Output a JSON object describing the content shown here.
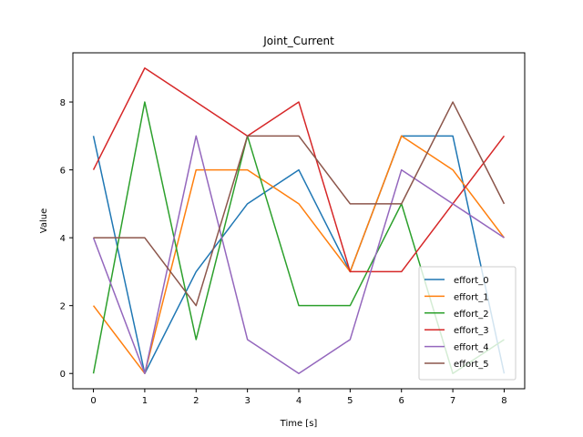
{
  "chart_data": {
    "type": "line",
    "title": "Joint_Current",
    "xlabel": "Time [s]",
    "ylabel": "Value",
    "x": [
      0,
      1,
      2,
      3,
      4,
      5,
      6,
      7,
      8
    ],
    "xlim": [
      -0.4,
      8.4
    ],
    "ylim": [
      -0.45,
      9.45
    ],
    "xticks": [
      0,
      1,
      2,
      3,
      4,
      5,
      6,
      7,
      8
    ],
    "yticks": [
      0,
      2,
      4,
      6,
      8
    ],
    "grid": false,
    "legend": "lower-right",
    "series": [
      {
        "name": "effort_0",
        "color": "#1f77b4",
        "values": [
          7,
          0,
          3,
          5,
          6,
          3,
          7,
          7,
          0
        ]
      },
      {
        "name": "effort_1",
        "color": "#ff7f0e",
        "values": [
          2,
          0,
          6,
          6,
          5,
          3,
          7,
          6,
          4
        ]
      },
      {
        "name": "effort_2",
        "color": "#2ca02c",
        "values": [
          0,
          8,
          1,
          7,
          2,
          2,
          5,
          0,
          1
        ]
      },
      {
        "name": "effort_3",
        "color": "#d62728",
        "values": [
          6,
          9,
          8,
          7,
          8,
          3,
          3,
          5,
          7
        ]
      },
      {
        "name": "effort_4",
        "color": "#9467bd",
        "values": [
          4,
          0,
          7,
          1,
          0,
          1,
          6,
          5,
          4
        ]
      },
      {
        "name": "effort_5",
        "color": "#8c564b",
        "values": [
          4,
          4,
          2,
          7,
          7,
          5,
          5,
          8,
          5
        ]
      }
    ]
  }
}
